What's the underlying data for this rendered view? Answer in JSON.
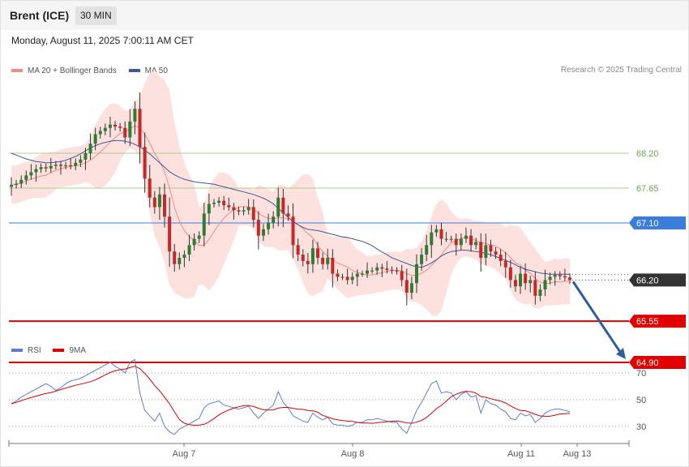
{
  "header": {
    "title": "Brent (ICE)",
    "interval": "30 MIN",
    "timestamp": "Monday, August 11, 2025 7:00:11 AM CET"
  },
  "legend": {
    "items": [
      {
        "label": "MA 20 + Bollinger Bands",
        "color": "#f28b82"
      },
      {
        "label": "MA 50",
        "color": "#3b5b9a"
      }
    ],
    "rsi_items": [
      {
        "label": "RSI",
        "color": "#5b7fd6"
      },
      {
        "label": "9MA",
        "color": "#e00000"
      }
    ]
  },
  "credit": "Research © 2025 Trading Central",
  "colors": {
    "up": "#2e7d32",
    "down": "#c62828",
    "support": "#e00000",
    "pivot": "#3b7ddd",
    "resistance": "#a8d08d",
    "arrow": "#2f5da0",
    "last": "#333333"
  },
  "chart_data": [
    {
      "type": "candlestick",
      "title": "",
      "x_ticks": [
        "Aug 7",
        "Aug 8",
        "Aug 11",
        "Aug 13"
      ],
      "levels": [
        {
          "value": 68.2,
          "label": "68.20",
          "kind": "resistance"
        },
        {
          "value": 67.65,
          "label": "67.65",
          "kind": "resistance"
        },
        {
          "value": 67.1,
          "label": "67.10",
          "kind": "pivot"
        },
        {
          "value": 66.2,
          "label": "66.20",
          "kind": "last"
        },
        {
          "value": 65.55,
          "label": "65.55",
          "kind": "support"
        },
        {
          "value": 64.9,
          "label": "64.90",
          "kind": "support"
        }
      ],
      "close": [
        67.7,
        67.72,
        67.78,
        67.85,
        67.9,
        67.95,
        67.98,
        67.96,
        68.0,
        68.02,
        68.0,
        68.01,
        68.0,
        68.05,
        68.1,
        68.2,
        68.35,
        68.5,
        68.55,
        68.6,
        68.65,
        68.62,
        68.6,
        68.45,
        68.7,
        68.9,
        68.3,
        67.8,
        67.5,
        67.35,
        67.55,
        67.2,
        66.65,
        66.45,
        66.55,
        66.6,
        66.75,
        66.85,
        66.9,
        67.25,
        67.4,
        67.42,
        67.45,
        67.38,
        67.35,
        67.3,
        67.28,
        67.3,
        67.35,
        67.15,
        66.9,
        67.0,
        67.1,
        67.2,
        67.5,
        67.25,
        67.2,
        66.75,
        66.6,
        66.5,
        66.45,
        66.7,
        66.55,
        66.45,
        66.55,
        66.3,
        66.25,
        66.25,
        66.2,
        66.25,
        66.3,
        66.3,
        66.35,
        66.35,
        66.4,
        66.38,
        66.36,
        66.35,
        66.34,
        66.2,
        66.0,
        66.15,
        66.45,
        66.6,
        66.75,
        66.95,
        67.0,
        66.85,
        66.85,
        66.85,
        66.75,
        66.85,
        66.9,
        66.75,
        66.8,
        66.55,
        66.75,
        66.65,
        66.6,
        66.5,
        66.4,
        66.2,
        66.1,
        66.3,
        66.15,
        66.2,
        65.95,
        66.05,
        66.2,
        66.25,
        66.28,
        66.26,
        66.24,
        66.2
      ],
      "ma50": [
        68.2,
        68.17,
        68.14,
        68.11,
        68.09,
        68.07,
        68.06,
        68.05,
        68.05,
        68.06,
        68.07,
        68.09,
        68.12,
        68.15,
        68.19,
        68.24,
        68.28,
        68.32,
        68.35,
        68.37,
        68.39,
        68.4,
        68.4,
        68.39,
        68.37,
        68.34,
        68.3,
        68.25,
        68.19,
        68.12,
        68.05,
        67.98,
        67.91,
        67.86,
        67.82,
        67.79,
        67.77,
        67.75,
        67.74,
        67.73,
        67.72,
        67.71,
        67.69,
        67.67,
        67.65,
        67.63,
        67.61,
        67.59,
        67.57,
        67.55,
        67.52,
        67.49,
        67.45,
        67.4,
        67.33,
        67.26,
        67.19,
        67.13,
        67.07,
        67.03,
        67.0,
        66.99,
        66.98,
        66.96,
        66.94,
        66.92,
        66.9,
        66.88,
        66.87,
        66.85,
        66.83,
        66.81,
        66.78,
        66.74,
        66.69,
        66.64,
        66.6,
        66.55,
        66.52,
        66.49,
        66.46,
        66.43,
        66.41,
        66.4,
        66.43,
        66.47,
        66.52,
        66.58,
        66.62,
        66.65,
        66.66,
        66.67,
        66.67,
        66.66,
        66.65,
        66.64,
        66.62,
        66.6,
        66.57,
        66.54,
        66.51,
        66.48,
        66.44,
        66.4,
        66.37,
        66.35,
        66.33,
        66.31,
        66.3,
        66.29,
        66.29,
        66.29,
        66.29,
        66.29
      ],
      "rsi": [
        47,
        49,
        52,
        54,
        56,
        58,
        60,
        62,
        60,
        57,
        59,
        62,
        64,
        65,
        66,
        68,
        70,
        72,
        74,
        76,
        78,
        75,
        73,
        70,
        78,
        80,
        55,
        42,
        38,
        34,
        40,
        30,
        26,
        24,
        28,
        30,
        32,
        34,
        36,
        44,
        47,
        48,
        49,
        46,
        45,
        44,
        43,
        44,
        45,
        40,
        36,
        40,
        43,
        46,
        56,
        48,
        44,
        38,
        36,
        34,
        33,
        40,
        37,
        35,
        37,
        32,
        31,
        31,
        30,
        31,
        33,
        33,
        35,
        35,
        36,
        35,
        34,
        33,
        33,
        28,
        25,
        33,
        42,
        48,
        55,
        62,
        64,
        55,
        56,
        55,
        50,
        54,
        56,
        52,
        53,
        40,
        50,
        47,
        46,
        43,
        41,
        36,
        35,
        40,
        38,
        39,
        33,
        36,
        40,
        42,
        43,
        43,
        42,
        41
      ]
    }
  ]
}
